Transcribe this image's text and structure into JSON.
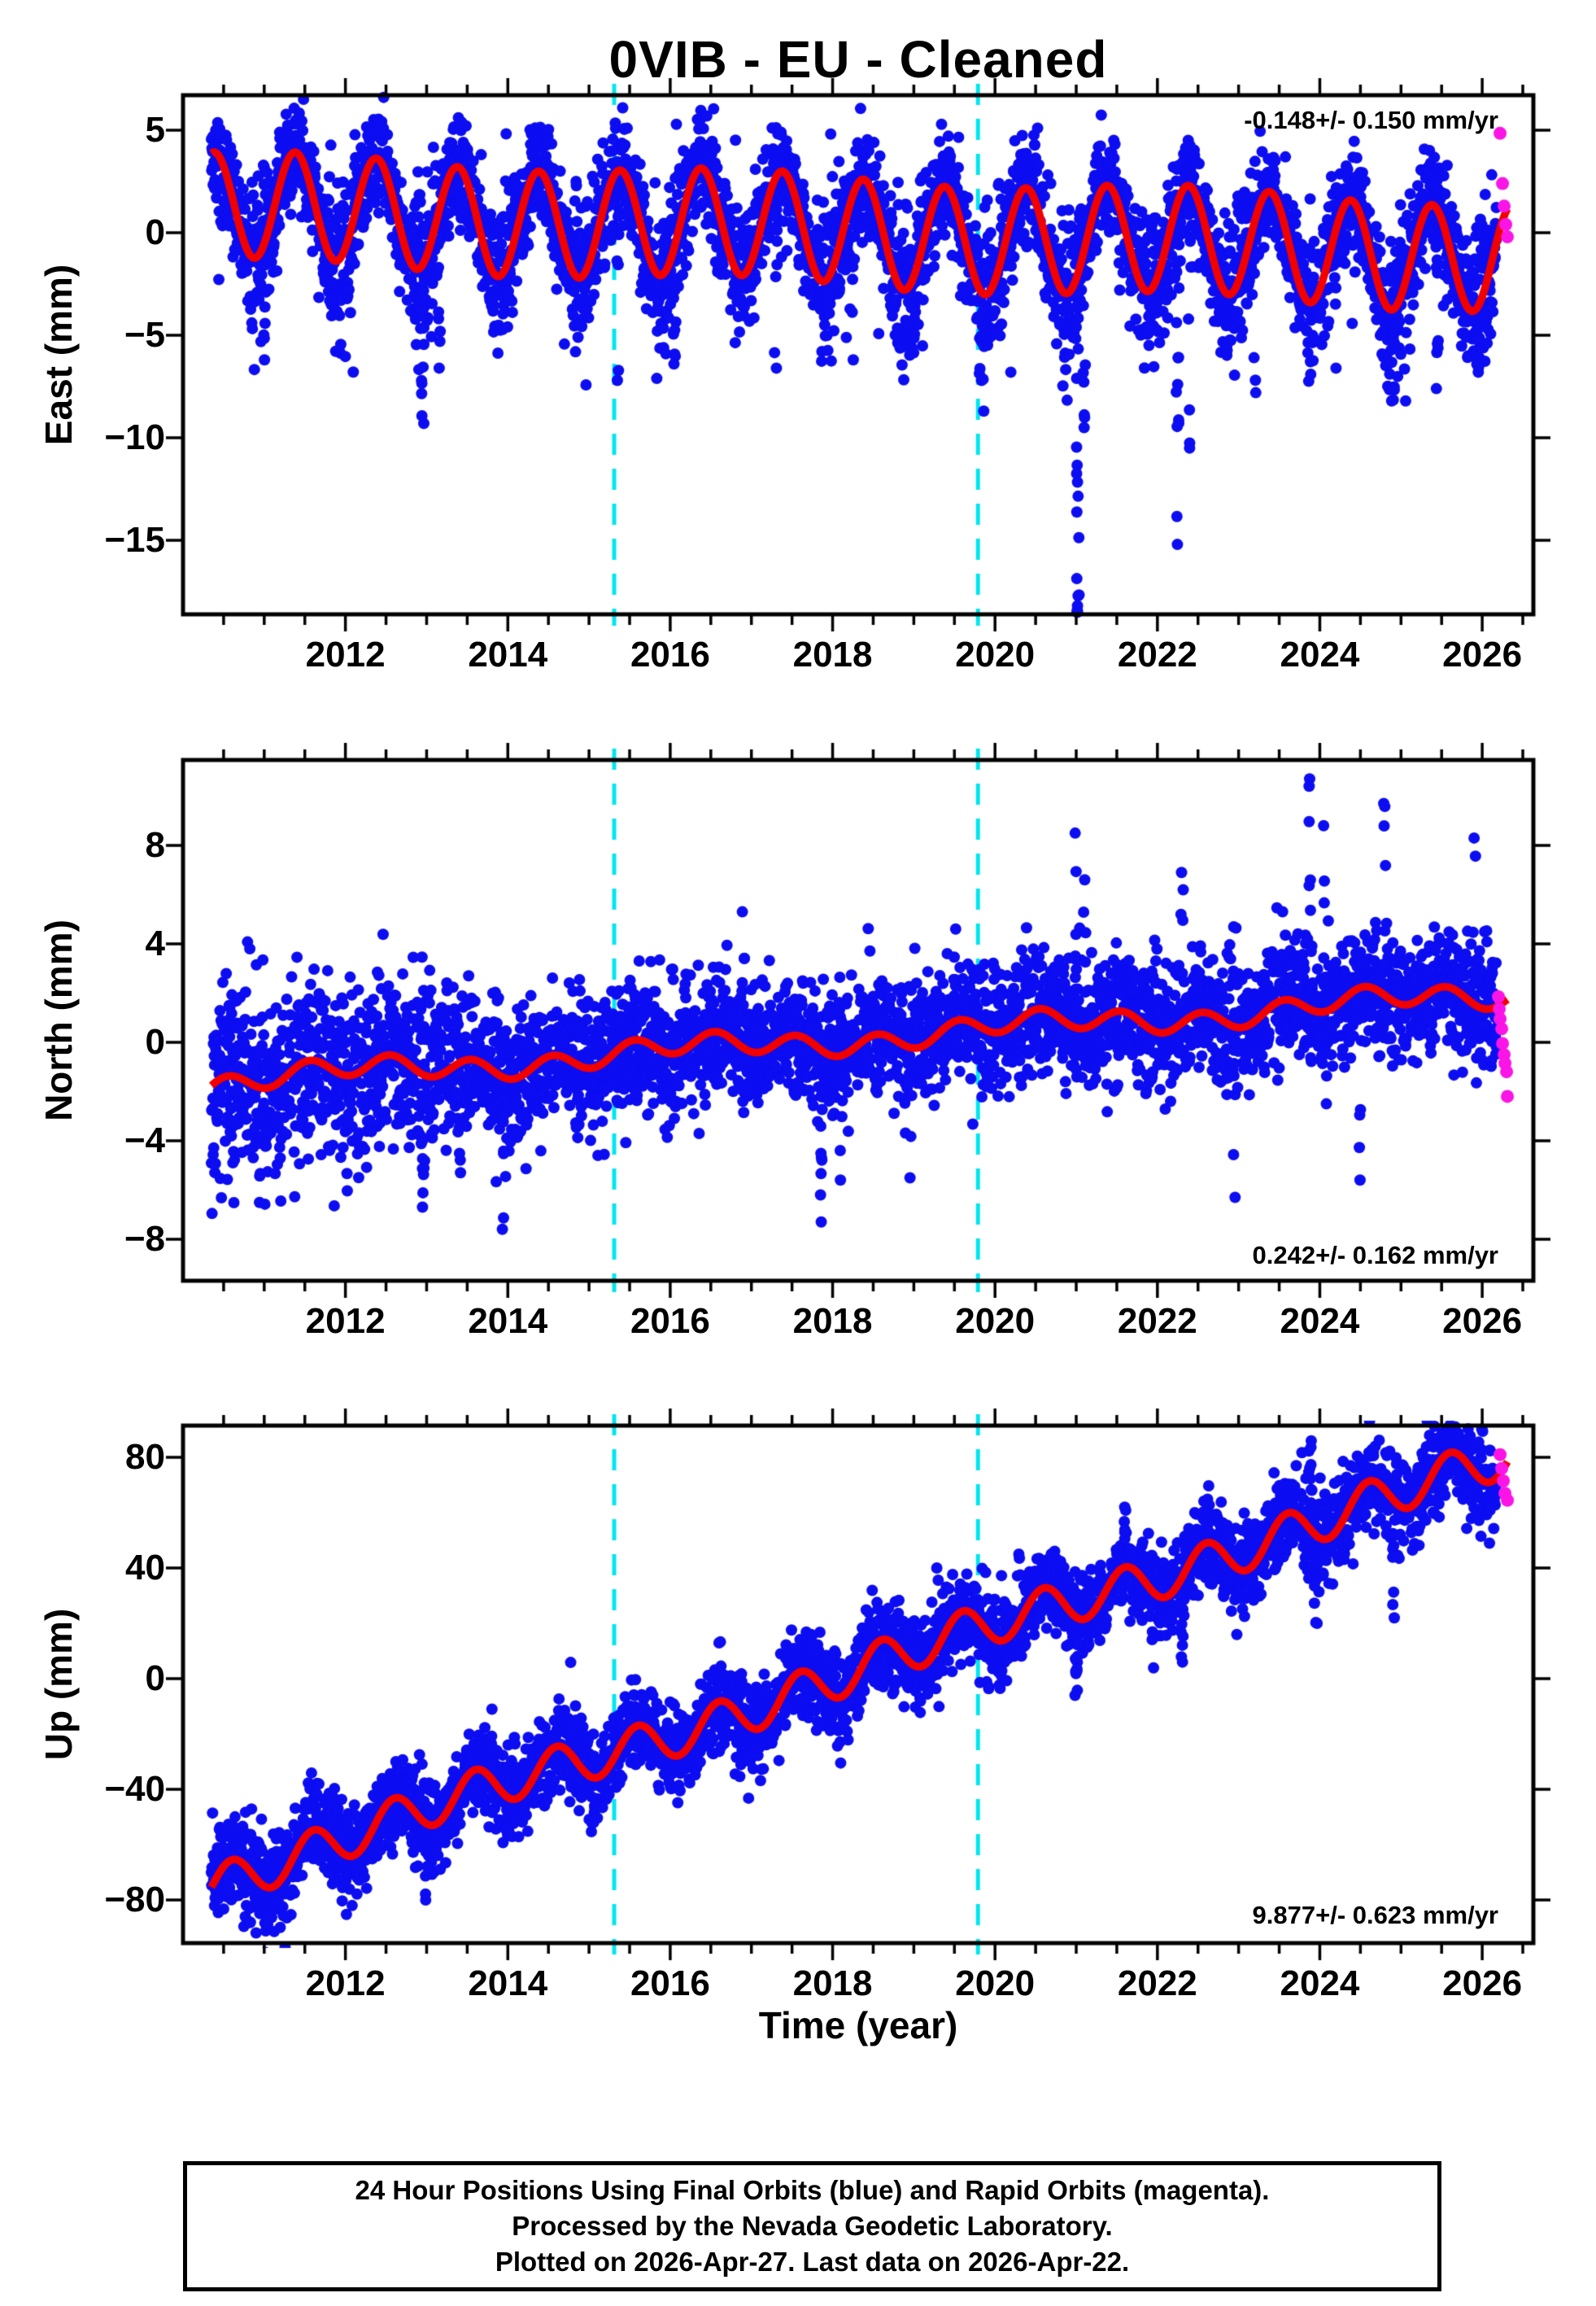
{
  "title": "0VIB  - EU - Cleaned",
  "caption": {
    "lines": [
      "24 Hour Positions Using Final Orbits (blue) and Rapid Orbits (magenta).",
      "Processed by the Nevada Geodetic Laboratory.",
      "Plotted on 2026-Apr-27. Last data on 2026-Apr-22."
    ]
  },
  "chart_data": {
    "type": "scatter",
    "title": "0VIB  - EU - Cleaned",
    "xlabel": "Time (year)",
    "legend": {
      "final_orbits": "blue",
      "rapid_orbits": "magenta"
    },
    "x_range": [
      2010.0,
      2026.63
    ],
    "x_ticks": [
      2012,
      2014,
      2016,
      2018,
      2020,
      2022,
      2024,
      2026
    ],
    "x_tick_labels": [
      "2012",
      "2014",
      "2016",
      "2018",
      "2020",
      "2022",
      "2024",
      "2026"
    ],
    "x_minor_step": 0.5,
    "data_span": [
      2010.35,
      2026.18
    ],
    "rapid_span": [
      2026.2,
      2026.31
    ],
    "event_lines": [
      2015.31,
      2019.79
    ],
    "colors": {
      "final": "#0d0df2",
      "rapid": "#fb14e6",
      "model": "#f20000",
      "event_line": "#00e6f0",
      "frame": "#000000"
    },
    "panels": [
      {
        "name": "east",
        "ylabel": "East (mm)",
        "rate_label": "-0.148+/- 0.150 mm/yr",
        "rate_mm_yr": -0.148,
        "rate_sigma_mm_yr": 0.15,
        "y_range": [
          -18.61,
          6.71
        ],
        "y_ticks": [
          5,
          0,
          -5,
          -10,
          -15
        ],
        "y_tick_labels": [
          "5",
          "0",
          "−5",
          "−10",
          "−15"
        ],
        "seed": 11,
        "model": {
          "base": 0.1,
          "slope": -0.148,
          "t0": 2018,
          "seasA": 2.6,
          "seasPh": 0.38,
          "wA": 0.25,
          "wT": 5.5,
          "wT0": 2010
        },
        "noise": {
          "s0": 1.3,
          "earlyMul": 1.0,
          "earlyUntil": 2010,
          "winterMul": 1.5,
          "tailP": 0.013,
          "tailBias": 0.75,
          "tailMag": 6
        },
        "outliers": [
          [
            2011.0,
            -6.2,
            4
          ],
          [
            2012.95,
            -9.3,
            12
          ],
          [
            2013.15,
            -6.6,
            6
          ],
          [
            2015.35,
            -7.2,
            7
          ],
          [
            2016.05,
            -6.4,
            5
          ],
          [
            2017.3,
            -6.6,
            5
          ],
          [
            2018.25,
            -6.2,
            4
          ],
          [
            2019.85,
            -8.7,
            9
          ],
          [
            2020.2,
            -6.8,
            5
          ],
          [
            2021.02,
            -18.5,
            20
          ],
          [
            2021.1,
            -9.5,
            7
          ],
          [
            2022.25,
            -15.2,
            14
          ],
          [
            2022.4,
            -10.5,
            6
          ],
          [
            2023.2,
            -7.8,
            5
          ],
          [
            2024.2,
            -6.6,
            4
          ],
          [
            2024.9,
            -8.2,
            7
          ],
          [
            2025.45,
            -7.6,
            7
          ],
          [
            2025.95,
            -6.8,
            5
          ]
        ],
        "rapid_points": [
          [
            2026.22,
            4.85
          ],
          [
            2026.25,
            2.4
          ],
          [
            2026.27,
            1.3
          ],
          [
            2026.29,
            0.4
          ],
          [
            2026.31,
            -0.2
          ]
        ]
      },
      {
        "name": "north",
        "ylabel": "North (mm)",
        "rate_label": "0.242+/- 0.162 mm/yr",
        "rate_mm_yr": 0.242,
        "rate_sigma_mm_yr": 0.162,
        "y_range": [
          -9.69,
          11.47
        ],
        "y_ticks": [
          8,
          4,
          0,
          -4,
          -8
        ],
        "y_tick_labels": [
          "8",
          "4",
          "0",
          "−4",
          "−8"
        ],
        "seed": 22,
        "model": {
          "base": -1.6,
          "slope": 0.225,
          "t0": 2010.5,
          "seasA": 0.4,
          "seasPh": 0.55,
          "wA": 0.3,
          "wT": 4.2,
          "wT0": 2011
        },
        "noise": {
          "s0": 1.15,
          "earlyMul": 1.55,
          "earlyUntil": 2014.5,
          "winterMul": 1.15,
          "tailP": 0.02,
          "tailBias": 0.5,
          "tailMag": 7
        },
        "outliers": [
          [
            2010.6,
            -4.9,
            4
          ],
          [
            2012.95,
            -6.7,
            9
          ],
          [
            2013.4,
            -5.3,
            4
          ],
          [
            2013.95,
            -7.6,
            5
          ],
          [
            2016.9,
            5.3,
            4
          ],
          [
            2017.85,
            -7.3,
            7
          ],
          [
            2018.1,
            -5.6,
            4
          ],
          [
            2019.5,
            4.6,
            3
          ],
          [
            2021.0,
            8.5,
            7
          ],
          [
            2021.1,
            6.6,
            4
          ],
          [
            2022.3,
            6.9,
            5
          ],
          [
            2022.95,
            -6.3,
            5
          ],
          [
            2023.88,
            10.7,
            8
          ],
          [
            2024.05,
            8.8,
            4
          ],
          [
            2024.5,
            -5.6,
            4
          ],
          [
            2024.8,
            9.7,
            6
          ],
          [
            2025.9,
            8.3,
            4
          ]
        ],
        "rapid_points": [
          [
            2026.2,
            1.85
          ],
          [
            2026.21,
            1.35
          ],
          [
            2026.22,
            0.95
          ],
          [
            2026.24,
            0.55
          ],
          [
            2026.25,
            -0.05
          ],
          [
            2026.27,
            -0.5
          ],
          [
            2026.28,
            -0.85
          ],
          [
            2026.3,
            -1.2
          ],
          [
            2026.31,
            -2.2
          ]
        ]
      },
      {
        "name": "up",
        "ylabel": "Up (mm)",
        "rate_label": "9.877+/- 0.623 mm/yr",
        "rate_mm_yr": 9.877,
        "rate_sigma_mm_yr": 0.623,
        "y_range": [
          -95.6,
          91.5
        ],
        "y_ticks": [
          80,
          40,
          0,
          -40,
          -80
        ],
        "y_tick_labels": [
          "80",
          "40",
          "0",
          "−40",
          "−80"
        ],
        "seed": 33,
        "model": {
          "base": -72,
          "slope": 9.55,
          "t0": 2010.5,
          "seasA": 7.5,
          "seasPh": 0.6,
          "wA": 2.0,
          "wT": 6,
          "wT0": 2012
        },
        "noise": {
          "s0": 7.2,
          "earlyMul": 1.3,
          "earlyUntil": 2012.5,
          "winterMul": 1.2,
          "tailP": 0.015,
          "tailBias": 0.5,
          "tailMag": 34
        },
        "outliers": [
          [
            2013.0,
            -80,
            5
          ],
          [
            2019.3,
            40,
            3
          ],
          [
            2020.3,
            45,
            3
          ],
          [
            2021.0,
            -6,
            8
          ],
          [
            2021.6,
            62,
            5
          ],
          [
            2022.3,
            6,
            6
          ],
          [
            2023.88,
            86,
            6
          ],
          [
            2023.95,
            20,
            5
          ],
          [
            2024.9,
            22,
            7
          ]
        ],
        "rapid_points": [
          [
            2026.22,
            81
          ],
          [
            2026.24,
            76
          ],
          [
            2026.26,
            71.5
          ],
          [
            2026.28,
            67
          ],
          [
            2026.31,
            64.5
          ]
        ]
      }
    ]
  }
}
